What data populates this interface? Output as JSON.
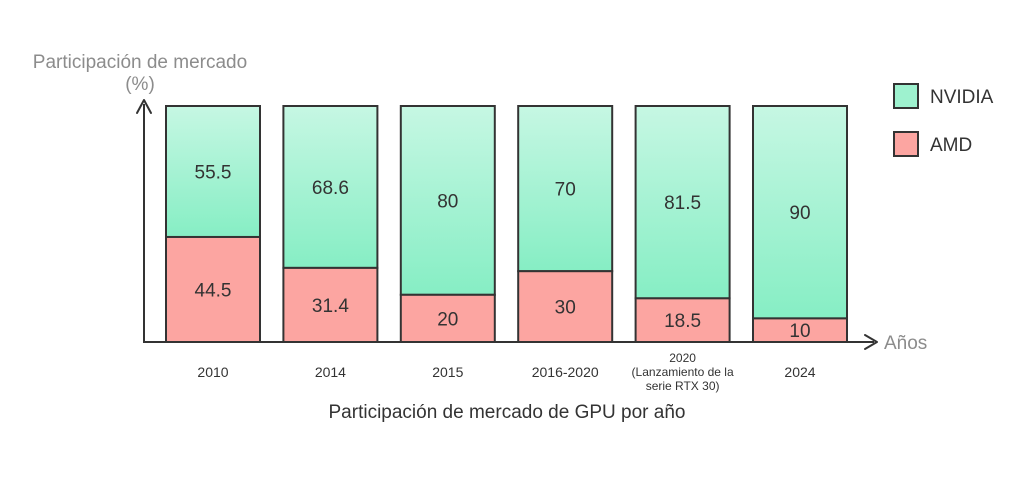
{
  "chart_data": {
    "type": "bar",
    "stacked": true,
    "normalized": true,
    "title": "Participación de mercado de GPU por año",
    "ylabel_lines": [
      "Participación de mercado",
      "(%)"
    ],
    "xlabel": "Años",
    "ylim": [
      0,
      100
    ],
    "categories": [
      {
        "lines": [
          "2010"
        ]
      },
      {
        "lines": [
          "2014"
        ]
      },
      {
        "lines": [
          "2015"
        ]
      },
      {
        "lines": [
          "2016-2020"
        ]
      },
      {
        "lines": [
          "2020",
          "(Lanzamiento de la",
          "serie RTX 30)"
        ]
      },
      {
        "lines": [
          "2024"
        ]
      }
    ],
    "series": [
      {
        "name": "AMD",
        "values": [
          44.5,
          31.4,
          20,
          30,
          18.5,
          10
        ],
        "labels": [
          "44.5",
          "31.4",
          "20",
          "30",
          "18.5",
          "10"
        ],
        "color": "#fca5a1"
      },
      {
        "name": "NVIDIA",
        "values": [
          55.5,
          68.6,
          80,
          70,
          81.5,
          90
        ],
        "labels": [
          "55.5",
          "68.6",
          "80",
          "70",
          "81.5",
          "90"
        ],
        "color": "#9ef2cf"
      }
    ],
    "legend": [
      {
        "name": "NVIDIA",
        "color": "#9ef2cf"
      },
      {
        "name": "AMD",
        "color": "#fca5a1"
      }
    ],
    "legend_position": "right",
    "grid": false
  },
  "colors": {
    "axis": "#333333",
    "bar_stroke": "#333333",
    "text": "#333333",
    "muted_text": "#8c8c8c"
  }
}
